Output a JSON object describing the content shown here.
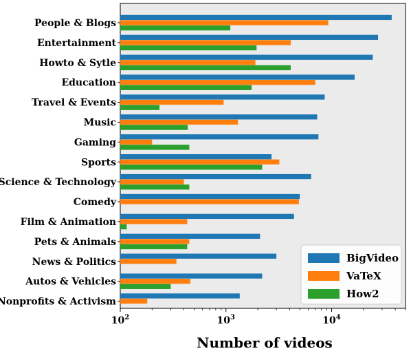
{
  "chart_data": {
    "type": "bar",
    "orientation": "horizontal",
    "xscale": "log",
    "xlim": [
      100,
      50000
    ],
    "xticks": [
      100,
      1000,
      10000
    ],
    "xlabel": "Number of videos",
    "ylabel": "",
    "title": "",
    "grid": false,
    "legend_position": "bottom-right",
    "categories": [
      "People & Blogs",
      "Entertainment",
      "Howto & Sytle",
      "Education",
      "Travel & Events",
      "Music",
      "Gaming",
      "Sports",
      "Science & Technology",
      "Comedy",
      "Film & Animation",
      "Pets & Animals",
      "News & Politics",
      "Autos & Vehicles",
      "Nonprofits & Activism"
    ],
    "series": [
      {
        "name": "BigVideo",
        "color": "#1f77b4",
        "values": [
          37000,
          27500,
          24500,
          16500,
          8600,
          7300,
          7500,
          2700,
          6400,
          5000,
          4400,
          2100,
          3000,
          2200,
          1350
        ]
      },
      {
        "name": "VaTeX",
        "color": "#ff7f0e",
        "values": [
          9300,
          4100,
          1900,
          7000,
          950,
          1300,
          200,
          3200,
          400,
          4900,
          430,
          450,
          340,
          460,
          180
        ]
      },
      {
        "name": "How2",
        "color": "#2ca02c",
        "values": [
          1100,
          1950,
          4100,
          1750,
          235,
          435,
          450,
          2200,
          450,
          null,
          115,
          430,
          null,
          300,
          null
        ]
      }
    ]
  }
}
